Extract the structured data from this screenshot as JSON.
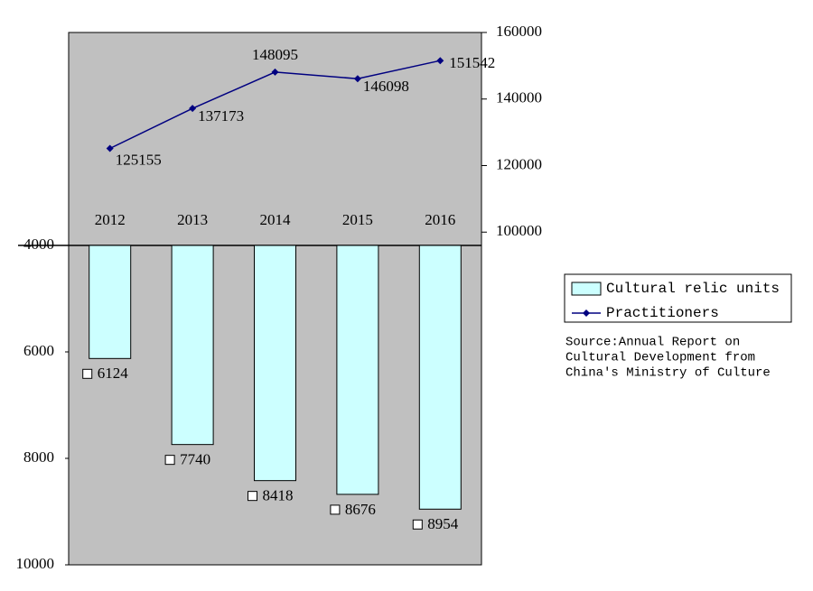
{
  "chart_data": {
    "type": "bar-line",
    "categories": [
      "2012",
      "2013",
      "2014",
      "2015",
      "2016"
    ],
    "series": [
      {
        "name": "Cultural relic units",
        "type": "bar",
        "color": "#ccffff",
        "values": [
          6124,
          7740,
          8418,
          8676,
          8954
        ]
      },
      {
        "name": "Practitioners",
        "type": "line",
        "axis": "y2",
        "color": "#000080",
        "values": [
          125155,
          137173,
          148095,
          146098,
          151542
        ]
      }
    ],
    "ylim": [
      0,
      10000
    ],
    "yticks": [
      4000,
      6000,
      8000,
      10000
    ],
    "y_inverted": true,
    "y2lim": [
      0,
      160000
    ],
    "y2ticks": [
      100000,
      120000,
      140000,
      160000
    ],
    "source_lines": [
      "Source:Annual Report on",
      "Cultural Development from",
      "China's Ministry of Culture"
    ],
    "legend": "right"
  }
}
